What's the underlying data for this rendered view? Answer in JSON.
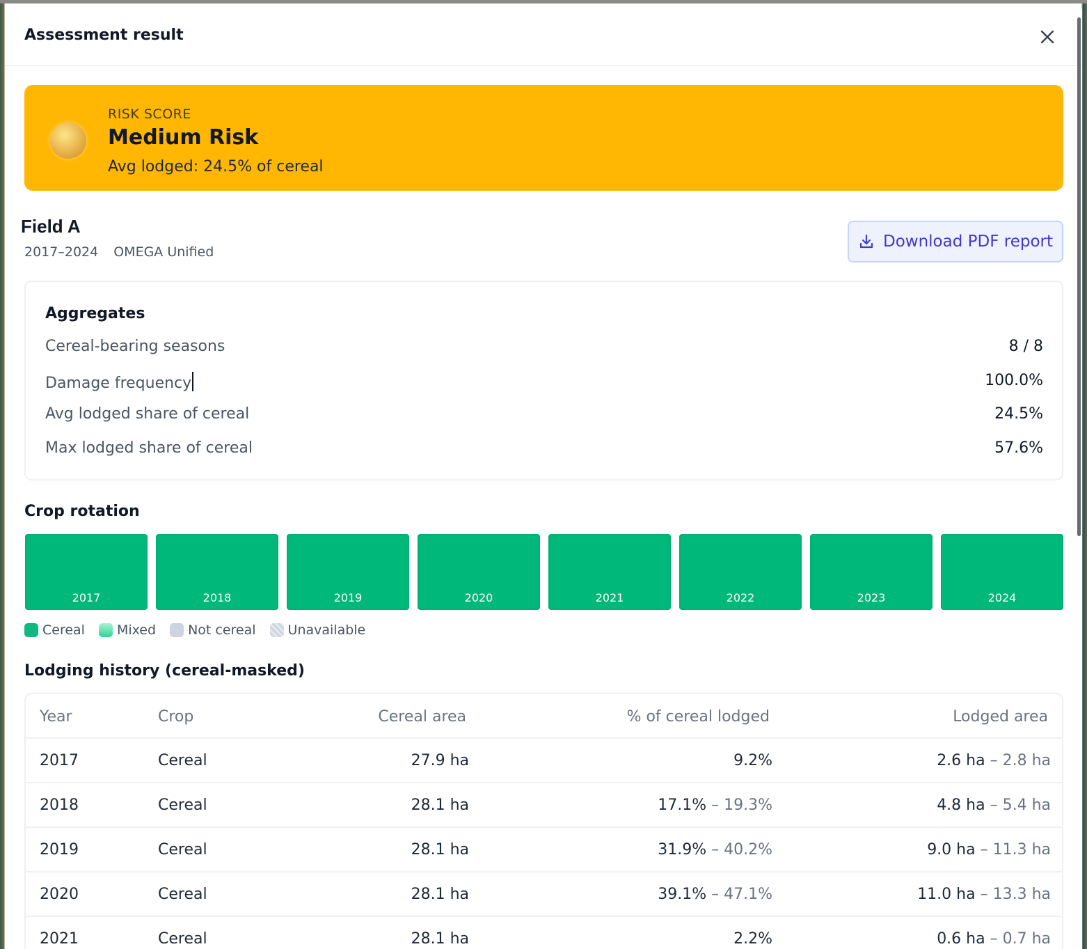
{
  "modal": {
    "title": "Assessment result",
    "close_icon": "close-icon"
  },
  "risk": {
    "eyebrow": "RISK SCORE",
    "level": "Medium Risk",
    "detail": "Avg lodged: 24.5% of cereal",
    "color": "#FFB703",
    "orb_icon": "risk-orb-icon"
  },
  "field": {
    "name": "Field A",
    "period": "2017–2024",
    "model": "OMEGA Unified"
  },
  "download": {
    "label": "Download PDF report",
    "icon": "download-icon"
  },
  "aggregates": {
    "title": "Aggregates",
    "rows": [
      {
        "label": "Cereal-bearing seasons",
        "value": "8 / 8"
      },
      {
        "label": "Damage frequency",
        "value": "100.0%"
      },
      {
        "label": "Avg lodged share of cereal",
        "value": "24.5%"
      },
      {
        "label": "Max lodged share of cereal",
        "value": "57.6%"
      }
    ]
  },
  "rotation": {
    "title": "Crop rotation",
    "seasons": [
      {
        "year": "2017",
        "class": "cereal"
      },
      {
        "year": "2018",
        "class": "cereal"
      },
      {
        "year": "2019",
        "class": "cereal"
      },
      {
        "year": "2020",
        "class": "cereal"
      },
      {
        "year": "2021",
        "class": "cereal"
      },
      {
        "year": "2022",
        "class": "cereal"
      },
      {
        "year": "2023",
        "class": "cereal"
      },
      {
        "year": "2024",
        "class": "cereal"
      }
    ],
    "legend": [
      {
        "label": "Cereal",
        "color": "#10B981"
      },
      {
        "label": "Mixed",
        "color": "#6EE7B7"
      },
      {
        "label": "Not cereal",
        "color": "#CBD5E1"
      },
      {
        "label": "Unavailable",
        "color": "#E5E7EB"
      }
    ],
    "cereal_color": "#00B87A"
  },
  "history": {
    "title": "Lodging history (cereal-masked)",
    "columns": [
      "Year",
      "Crop",
      "Cereal area",
      "% of cereal lodged",
      "Lodged area"
    ],
    "rows": [
      {
        "year": "2017",
        "crop": "Cereal",
        "area": "27.9 ha",
        "pct_low": "9.2%",
        "pct_high": "",
        "lodged_low": "2.6 ha",
        "lodged_high": "2.8 ha"
      },
      {
        "year": "2018",
        "crop": "Cereal",
        "area": "28.1 ha",
        "pct_low": "17.1%",
        "pct_high": "19.3%",
        "lodged_low": "4.8 ha",
        "lodged_high": "5.4 ha"
      },
      {
        "year": "2019",
        "crop": "Cereal",
        "area": "28.1 ha",
        "pct_low": "31.9%",
        "pct_high": "40.2%",
        "lodged_low": "9.0 ha",
        "lodged_high": "11.3 ha"
      },
      {
        "year": "2020",
        "crop": "Cereal",
        "area": "28.1 ha",
        "pct_low": "39.1%",
        "pct_high": "47.1%",
        "lodged_low": "11.0 ha",
        "lodged_high": "13.3 ha"
      },
      {
        "year": "2021",
        "crop": "Cereal",
        "area": "28.1 ha",
        "pct_low": "2.2%",
        "pct_high": "",
        "lodged_low": "0.6 ha",
        "lodged_high": "0.7 ha"
      }
    ],
    "range_separator": " – "
  }
}
